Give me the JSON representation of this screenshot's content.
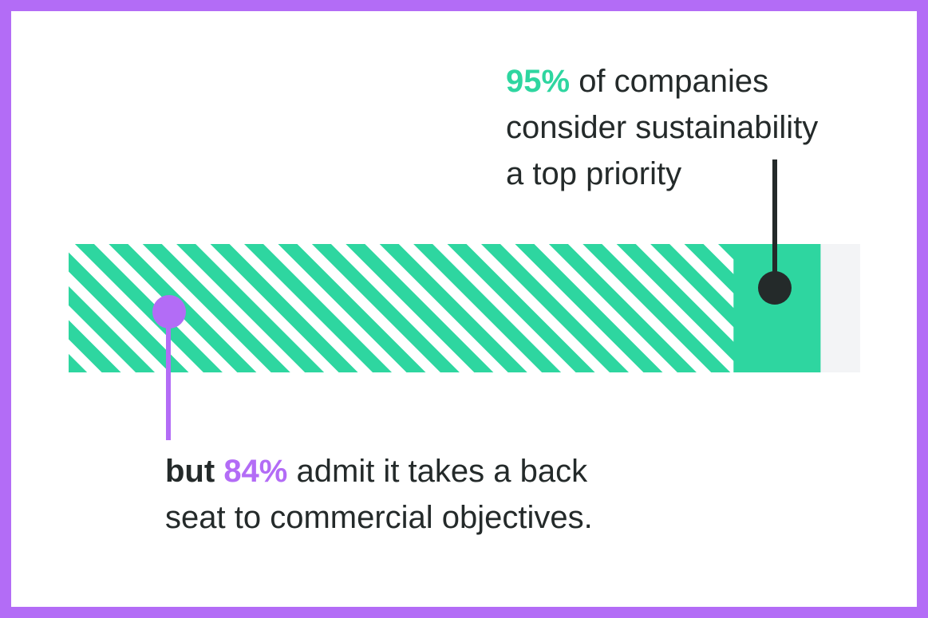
{
  "chart_data": {
    "type": "progress",
    "values": [
      95,
      84
    ],
    "value_labels": [
      "95%",
      "84%"
    ],
    "colors": [
      "#2ed6a0",
      "#b36cf6"
    ],
    "track_color": "#f3f4f6",
    "xlim": [
      0,
      100
    ],
    "top_note": {
      "lines": [
        "of companies",
        "consider sustainability",
        "a top priority"
      ]
    },
    "bottom_note": {
      "lead": "but",
      "lines": [
        "admit it takes a back",
        "seat to commercial objectives."
      ]
    }
  }
}
